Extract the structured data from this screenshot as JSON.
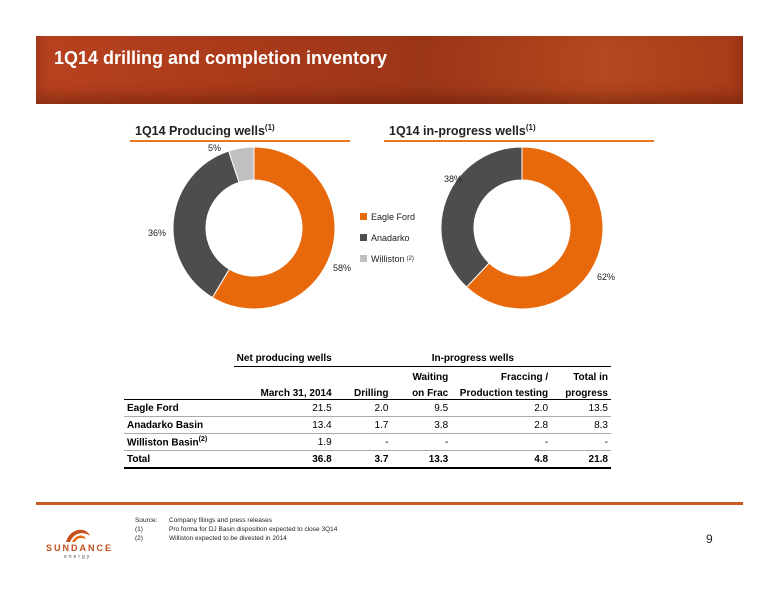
{
  "header": {
    "title": "1Q14 drilling and completion inventory"
  },
  "colors": {
    "eagle_ford": "#e8690c",
    "anadarko": "#4d4d4d",
    "williston": "#c0c0c0",
    "accent": "#e87722"
  },
  "producing_chart": {
    "title": "1Q14 Producing wells",
    "title_sup": "(1)",
    "slices": [
      {
        "label": "Eagle Ford",
        "value": 58,
        "pct_label": "58%"
      },
      {
        "label": "Anadarko",
        "value": 36,
        "pct_label": "36%"
      },
      {
        "label": "Williston",
        "value": 5,
        "pct_label": "5%"
      }
    ]
  },
  "inprogress_chart": {
    "title": "1Q14 in-progress wells",
    "title_sup": "(1)",
    "slices": [
      {
        "label": "Eagle Ford",
        "value": 62,
        "pct_label": "62%"
      },
      {
        "label": "Anadarko",
        "value": 38,
        "pct_label": "38%"
      }
    ]
  },
  "legend": {
    "items": [
      {
        "label": "Eagle Ford",
        "sup": ""
      },
      {
        "label": "Anadarko",
        "sup": ""
      },
      {
        "label": "Williston",
        "sup": "(2)"
      }
    ]
  },
  "table": {
    "group_net": "Net producing wells",
    "group_inprog": "In-progress wells",
    "col_date": "March 31, 2014",
    "col_drilling": "Drilling",
    "col_waiting_1": "Waiting",
    "col_waiting_2": "on Frac",
    "col_fraccing_1": "Fraccing /",
    "col_fraccing_2": "Production testing",
    "col_total_1": "Total in",
    "col_total_2": "progress",
    "rows": [
      {
        "label": "Eagle Ford",
        "sup": "",
        "net": "21.5",
        "drilling": "2.0",
        "waiting": "9.5",
        "fraccing": "2.0",
        "total": "13.5"
      },
      {
        "label": "Anadarko Basin",
        "sup": "",
        "net": "13.4",
        "drilling": "1.7",
        "waiting": "3.8",
        "fraccing": "2.8",
        "total": "8.3"
      },
      {
        "label": "Williston Basin",
        "sup": "(2)",
        "net": "1.9",
        "drilling": "-",
        "waiting": "-",
        "fraccing": "-",
        "total": "-"
      }
    ],
    "total_row": {
      "label": "Total",
      "net": "36.8",
      "drilling": "3.7",
      "waiting": "13.3",
      "fraccing": "4.8",
      "total": "21.8"
    }
  },
  "footer": {
    "logo_word": "SUNDANCE",
    "logo_sub": "energy",
    "notes": [
      {
        "key": "Source:",
        "text": "Company filings and press releases"
      },
      {
        "key": "(1)",
        "text": "Pro forma for DJ Basin disposition expected to close 3Q14"
      },
      {
        "key": "(2)",
        "text": "Williston expected to be divested in 2014"
      }
    ],
    "page_number": "9"
  }
}
